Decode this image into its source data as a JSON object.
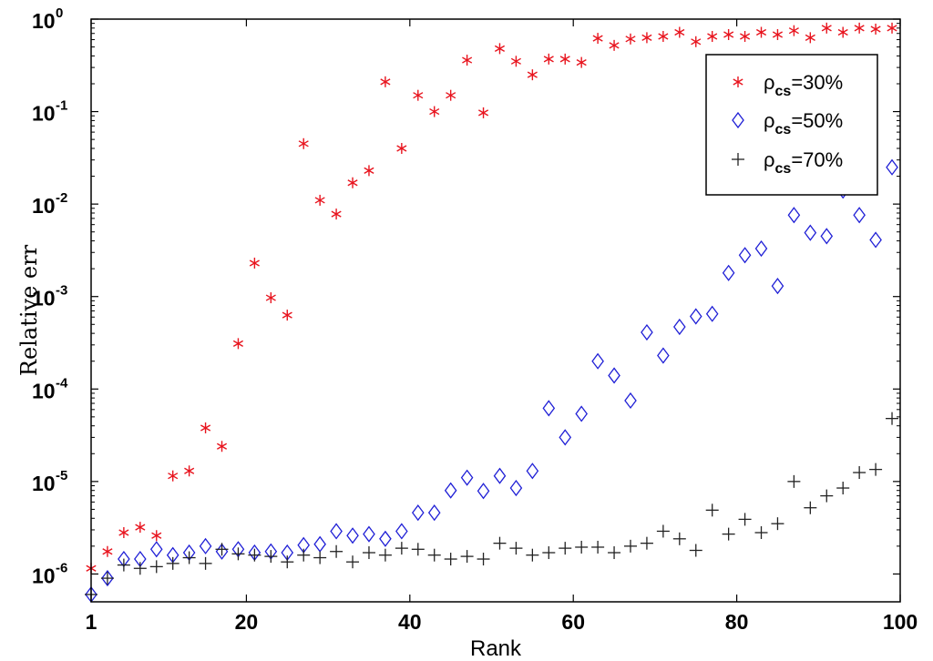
{
  "chart_data": {
    "type": "scatter",
    "title": "",
    "xlabel": "Rank",
    "ylabel": "Relative err",
    "xlim": [
      1,
      100
    ],
    "ylim": [
      5e-07,
      1
    ],
    "yscale": "log",
    "grid": false,
    "legend_position": "top-right",
    "x_ticks": [
      1,
      20,
      40,
      60,
      80,
      100
    ],
    "x_tick_labels": [
      "1",
      "20",
      "40",
      "60",
      "80",
      "100"
    ],
    "y_ticks": [
      1e-06,
      1e-05,
      0.0001,
      0.001,
      0.01,
      0.1,
      1
    ],
    "y_tick_labels": [
      {
        "base": "10",
        "exp": "-6"
      },
      {
        "base": "10",
        "exp": "-5"
      },
      {
        "base": "10",
        "exp": "-4"
      },
      {
        "base": "10",
        "exp": "-3"
      },
      {
        "base": "10",
        "exp": "-2"
      },
      {
        "base": "10",
        "exp": "-1"
      },
      {
        "base": "10",
        "exp": "0"
      }
    ],
    "series": [
      {
        "name": "ρcs=30%",
        "label_main": "ρ",
        "label_sub": "cs",
        "label_rest": "=30%",
        "marker": "asterisk",
        "color": "#e8141e",
        "x": [
          1,
          3,
          5,
          7,
          9,
          11,
          13,
          15,
          17,
          19,
          21,
          23,
          25,
          27,
          29,
          31,
          33,
          35,
          37,
          39,
          41,
          43,
          45,
          47,
          49,
          51,
          53,
          55,
          57,
          59,
          61,
          63,
          65,
          67,
          69,
          71,
          73,
          75,
          77,
          79,
          81,
          83,
          85,
          87,
          89,
          91,
          93,
          95,
          97,
          99
        ],
        "y": [
          1.15e-06,
          1.75e-06,
          2.8e-06,
          3.2e-06,
          2.6e-06,
          1.15e-05,
          1.3e-05,
          3.8e-05,
          2.4e-05,
          0.00031,
          0.0023,
          0.00097,
          0.00063,
          0.045,
          0.011,
          0.0078,
          0.017,
          0.023,
          0.21,
          0.04,
          0.15,
          0.1,
          0.15,
          0.36,
          0.097,
          0.48,
          0.35,
          0.25,
          0.37,
          0.37,
          0.34,
          0.62,
          0.52,
          0.61,
          0.63,
          0.65,
          0.72,
          0.57,
          0.65,
          0.68,
          0.65,
          0.72,
          0.68,
          0.75,
          0.63,
          0.8,
          0.72,
          0.8,
          0.78,
          0.8
        ]
      },
      {
        "name": "ρcs=50%",
        "label_main": "ρ",
        "label_sub": "cs",
        "label_rest": "=50%",
        "marker": "diamond",
        "color": "#1f1fd6",
        "x": [
          1,
          3,
          5,
          7,
          9,
          11,
          13,
          15,
          17,
          19,
          21,
          23,
          25,
          27,
          29,
          31,
          33,
          35,
          37,
          39,
          41,
          43,
          45,
          47,
          49,
          51,
          53,
          55,
          57,
          59,
          61,
          63,
          65,
          67,
          69,
          71,
          73,
          75,
          77,
          79,
          81,
          83,
          85,
          87,
          89,
          91,
          93,
          95,
          97,
          99
        ],
        "y": [
          6e-07,
          9e-07,
          1.45e-06,
          1.45e-06,
          1.85e-06,
          1.6e-06,
          1.7e-06,
          2e-06,
          1.75e-06,
          1.85e-06,
          1.7e-06,
          1.75e-06,
          1.7e-06,
          2.05e-06,
          2.1e-06,
          2.9e-06,
          2.6e-06,
          2.7e-06,
          2.4e-06,
          2.9e-06,
          4.6e-06,
          4.6e-06,
          8e-06,
          1.1e-05,
          7.9e-06,
          1.15e-05,
          8.5e-06,
          1.3e-05,
          6.2e-05,
          3e-05,
          5.4e-05,
          0.0002,
          0.00014,
          7.5e-05,
          0.00041,
          0.00023,
          0.00047,
          0.00061,
          0.00065,
          0.0018,
          0.0028,
          0.0033,
          0.0013,
          0.0076,
          0.0049,
          0.0045,
          0.014,
          0.0076,
          0.0041,
          0.025
        ]
      },
      {
        "name": "ρcs=70%",
        "label_main": "ρ",
        "label_sub": "cs",
        "label_rest": "=70%",
        "marker": "plus",
        "color": "#222222",
        "x": [
          1,
          3,
          5,
          7,
          9,
          11,
          13,
          15,
          17,
          19,
          21,
          23,
          25,
          27,
          29,
          31,
          33,
          35,
          37,
          39,
          41,
          43,
          45,
          47,
          49,
          51,
          53,
          55,
          57,
          59,
          61,
          63,
          65,
          67,
          69,
          71,
          73,
          75,
          77,
          79,
          81,
          83,
          85,
          87,
          89,
          91,
          93,
          95,
          97,
          99
        ],
        "y": [
          6e-07,
          9e-07,
          1.25e-06,
          1.15e-06,
          1.2e-06,
          1.3e-06,
          1.5e-06,
          1.3e-06,
          1.85e-06,
          1.65e-06,
          1.6e-06,
          1.55e-06,
          1.35e-06,
          1.6e-06,
          1.5e-06,
          1.75e-06,
          1.35e-06,
          1.7e-06,
          1.6e-06,
          1.9e-06,
          1.85e-06,
          1.6e-06,
          1.45e-06,
          1.55e-06,
          1.45e-06,
          2.15e-06,
          1.9e-06,
          1.6e-06,
          1.7e-06,
          1.9e-06,
          1.95e-06,
          1.95e-06,
          1.7e-06,
          2e-06,
          2.15e-06,
          2.9e-06,
          2.4e-06,
          1.8e-06,
          4.9e-06,
          2.7e-06,
          3.9e-06,
          2.8e-06,
          3.5e-06,
          1e-05,
          5.2e-06,
          7e-06,
          8.5e-06,
          1.25e-05,
          1.35e-05,
          4.8e-05
        ]
      }
    ]
  }
}
